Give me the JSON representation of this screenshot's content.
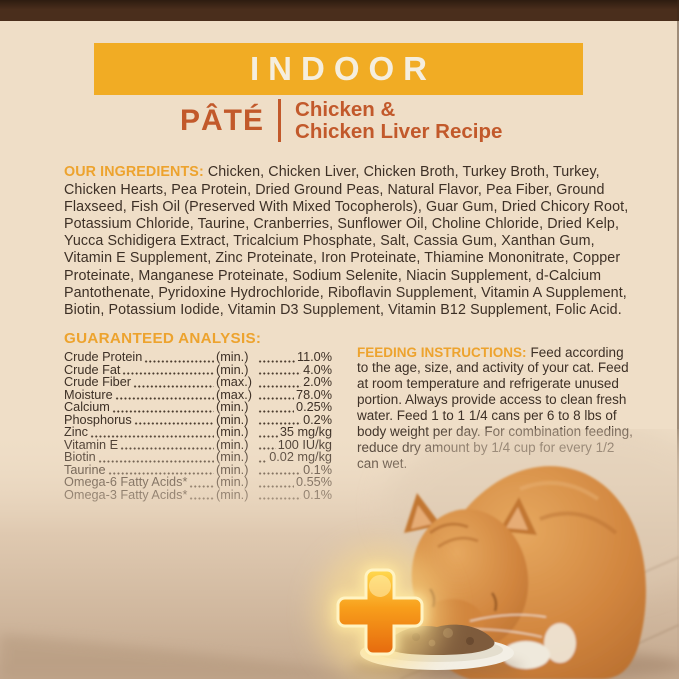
{
  "colors": {
    "background_cream": "#EFDEC7",
    "top_bar_brown": "#4A2E1C",
    "banner_yellow": "#F1AC24",
    "banner_text": "#F5EEDE",
    "accent_orange": "#C2592B",
    "heading_orange": "#EDA32E",
    "body_text": "#3D3026"
  },
  "banner": {
    "title": "INDOOR"
  },
  "subheader": {
    "style_name": "PÂTÉ",
    "recipe_line1": "Chicken &",
    "recipe_line2": "Chicken Liver Recipe"
  },
  "ingredients": {
    "label": "OUR INGREDIENTS:",
    "text": "Chicken, Chicken Liver, Chicken Broth, Turkey Broth, Turkey, Chicken Hearts, Pea Protein, Dried Ground Peas, Natural Flavor, Pea Fiber, Ground Flaxseed, Fish Oil (Preserved With Mixed Tocopherols), Guar Gum, Dried Chicory Root, Potassium Chloride, Taurine, Cranberries, Sunflower Oil, Choline Chloride, Dried Kelp, Yucca Schidigera Extract, Tricalcium Phosphate, Salt, Cassia Gum, Xanthan Gum, Vitamin E Supplement, Zinc Proteinate, Iron Proteinate, Thiamine Mononitrate, Copper Proteinate, Manganese Proteinate, Sodium Selenite, Niacin Supplement, d-Calcium Pantothenate, Pyridoxine Hydrochloride, Riboflavin Supplement, Vitamin A Supplement, Biotin, Potassium Iodide, Vitamin D3 Supplement, Vitamin B12 Supplement, Folic Acid."
  },
  "guaranteed_analysis": {
    "title": "GUARANTEED ANALYSIS:",
    "rows": [
      {
        "name": "Crude Protein",
        "basis": "(min.)",
        "value": "11.0%"
      },
      {
        "name": "Crude Fat",
        "basis": "(min.)",
        "value": "4.0%"
      },
      {
        "name": "Crude Fiber",
        "basis": "(max.)",
        "value": "2.0%"
      },
      {
        "name": "Moisture",
        "basis": "(max.)",
        "value": "78.0%"
      },
      {
        "name": "Calcium",
        "basis": "(min.)",
        "value": "0.25%"
      },
      {
        "name": "Phosphorus",
        "basis": "(min.)",
        "value": "0.2%"
      },
      {
        "name": "Zinc",
        "basis": "(min.)",
        "value": "35 mg/kg"
      },
      {
        "name": "Vitamin E",
        "basis": "(min.)",
        "value": "100 IU/kg"
      },
      {
        "name": "Biotin",
        "basis": "(min.)",
        "value": "0.02 mg/kg"
      },
      {
        "name": "Taurine",
        "basis": "(min.)",
        "value": "0.1%"
      },
      {
        "name": "Omega-6 Fatty Acids*",
        "basis": "(min.)",
        "value": "0.55%"
      },
      {
        "name": "Omega-3 Fatty Acids*",
        "basis": "(min.)",
        "value": "0.1%"
      }
    ]
  },
  "feeding_instructions": {
    "label": "FEEDING INSTRUCTIONS:",
    "text": "Feed according to the age, size, and activity of your cat. Feed at room temperature and refrigerate unused portion. Always provide access to clean fresh water. Feed 1 to 1 1/4 cans per 6 to 8 lbs of body weight per day. For combination feeding, reduce dry amount by 1/4 cup for every 1/2 can wet."
  },
  "photo": {
    "subject": "Orange tabby cat eating pâté from a white saucer",
    "plus_icon": "plus-icon"
  }
}
